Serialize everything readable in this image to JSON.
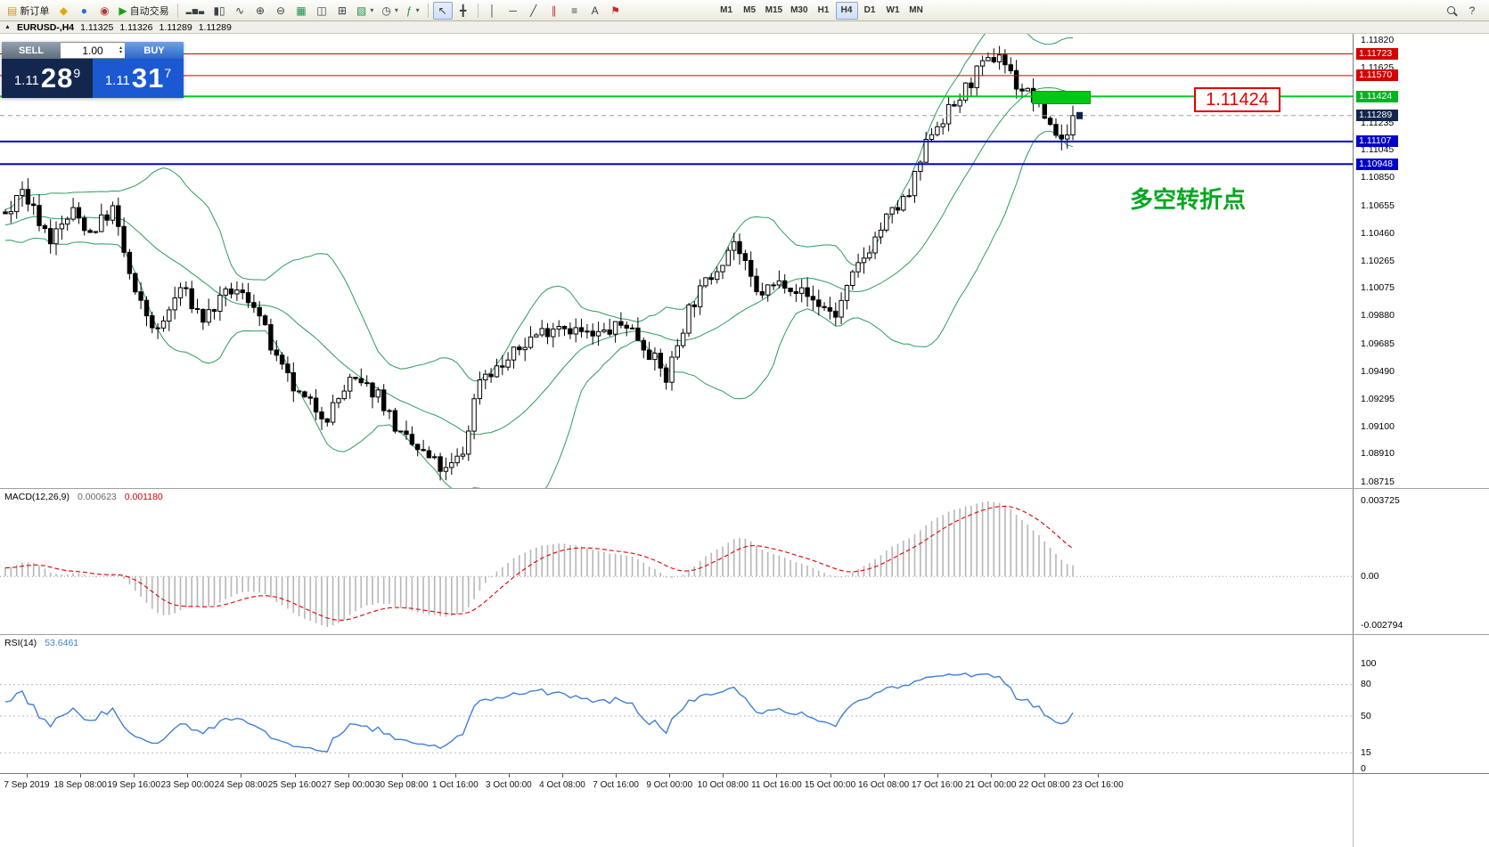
{
  "toolbar": {
    "new_order_label": "新订单",
    "autotrade_label": "自动交易",
    "text_tool_label": "A",
    "help_label": "?",
    "timeframes": [
      "M1",
      "M5",
      "M15",
      "M30",
      "H1",
      "H4",
      "D1",
      "W1",
      "MN"
    ],
    "active_timeframe": "H4"
  },
  "chart_header": {
    "symbol_period": "EURUSD-,H4",
    "open": "1.11325",
    "high": "1.11326",
    "low": "1.11289",
    "close": "1.11289"
  },
  "trade_panel": {
    "sell_label": "SELL",
    "buy_label": "BUY",
    "volume": "1.00",
    "sell_price_prefix": "1.11",
    "sell_price_big": "28",
    "sell_price_sup": "9",
    "buy_price_prefix": "1.11",
    "buy_price_big": "31",
    "buy_price_sup": "7"
  },
  "annotations": {
    "price_callout": "1.11424",
    "turning_point_note": "多空转折点"
  },
  "chart_data": {
    "type": "candlestick",
    "symbol": "EURUSD-",
    "timeframe": "H4",
    "price_axis": {
      "min": 1.08715,
      "max": 1.1182,
      "ticks": [
        "1.11820",
        "1.11625",
        "1.11235",
        "1.11045",
        "1.10850",
        "1.10655",
        "1.10460",
        "1.10265",
        "1.10075",
        "1.09880",
        "1.09685",
        "1.09490",
        "1.09295",
        "1.09100",
        "1.08910",
        "1.08715"
      ]
    },
    "level_lines": [
      {
        "name": "resistance-line-1",
        "price": 1.11723,
        "label": "1.11723",
        "color": "#d40000",
        "label_bg": "#d40000",
        "width": 1
      },
      {
        "name": "resistance-line-2",
        "price": 1.1157,
        "label": "1.11570",
        "color": "#d40000",
        "label_bg": "#d40000",
        "width": 1
      },
      {
        "name": "pivot-line",
        "price": 1.11424,
        "label": "1.11424",
        "color": "#00cc24",
        "label_bg": "#00b41e",
        "width": 2
      },
      {
        "name": "bid-price-line",
        "price": 1.11289,
        "label": "1.11289",
        "color": "#9a9a9a",
        "label_bg": "#13264e",
        "width": 1,
        "dashed": true
      },
      {
        "name": "support-line-1",
        "price": 1.11107,
        "label": "1.11107",
        "color": "#0000d4",
        "label_bg": "#0000c8",
        "width": 2
      },
      {
        "name": "support-line-2",
        "price": 1.10948,
        "label": "1.10948",
        "color": "#0000d4",
        "label_bg": "#0000c8",
        "width": 2
      }
    ],
    "time_labels": [
      "7 Sep 2019",
      "18 Sep 08:00",
      "19 Sep 16:00",
      "23 Sep 00:00",
      "24 Sep 08:00",
      "25 Sep 16:00",
      "27 Sep 00:00",
      "30 Sep 08:00",
      "1 Oct 16:00",
      "3 Oct 00:00",
      "4 Oct 08:00",
      "7 Oct 16:00",
      "9 Oct 00:00",
      "10 Oct 08:00",
      "11 Oct 16:00",
      "15 Oct 00:00",
      "16 Oct 08:00",
      "17 Oct 16:00",
      "21 Oct 00:00",
      "22 Oct 08:00",
      "23 Oct 16:00"
    ],
    "candles": {
      "count": 190,
      "warmup": 30,
      "seed": 7,
      "final_close": 1.11289,
      "noise": 0.0011,
      "wick": 0.0008,
      "anchors": [
        [
          -30,
          1.1035
        ],
        [
          -24,
          1.1052
        ],
        [
          -18,
          1.1042
        ],
        [
          -12,
          1.1055
        ],
        [
          -6,
          1.1048
        ],
        [
          0,
          1.1062
        ],
        [
          3,
          1.1076
        ],
        [
          8,
          1.1042
        ],
        [
          12,
          1.1061
        ],
        [
          15,
          1.1047
        ],
        [
          19,
          1.1063
        ],
        [
          23,
          1.1002
        ],
        [
          27,
          1.0976
        ],
        [
          31,
          1.1008
        ],
        [
          35,
          1.0986
        ],
        [
          40,
          1.1006
        ],
        [
          44,
          1.0998
        ],
        [
          48,
          1.0956
        ],
        [
          52,
          1.0931
        ],
        [
          57,
          1.0918
        ],
        [
          61,
          1.0942
        ],
        [
          66,
          1.0934
        ],
        [
          70,
          1.0903
        ],
        [
          74,
          1.0891
        ],
        [
          78,
          1.0878
        ],
        [
          81,
          1.0892
        ],
        [
          84,
          1.0946
        ],
        [
          88,
          1.0953
        ],
        [
          93,
          1.0973
        ],
        [
          98,
          1.0983
        ],
        [
          104,
          1.0973
        ],
        [
          110,
          1.0983
        ],
        [
          114,
          1.0963
        ],
        [
          117,
          1.0944
        ],
        [
          121,
          1.0993
        ],
        [
          126,
          1.1023
        ],
        [
          129,
          1.1041
        ],
        [
          133,
          1.1003
        ],
        [
          138,
          1.1013
        ],
        [
          143,
          1.0999
        ],
        [
          147,
          1.0989
        ],
        [
          151,
          1.1023
        ],
        [
          156,
          1.1056
        ],
        [
          160,
          1.1073
        ],
        [
          164,
          1.1119
        ],
        [
          168,
          1.1136
        ],
        [
          172,
          1.1159
        ],
        [
          176,
          1.1173
        ],
        [
          179,
          1.1151
        ],
        [
          182,
          1.1141
        ],
        [
          185,
          1.1123
        ],
        [
          187,
          1.1111
        ],
        [
          189,
          1.1129
        ]
      ]
    },
    "indicators": {
      "bollinger": {
        "period": 20,
        "deviation": 2,
        "color": "#2a9d5c"
      },
      "macd": {
        "label": "MACD(12,26,9)",
        "value_main": "0.000623",
        "value_signal": "0.001180",
        "axis_max": "0.003725",
        "axis_zero": "0.00",
        "axis_min": "-0.002794",
        "histogram_color": "#b6b6b6",
        "signal_color": "#e00000"
      },
      "rsi": {
        "label": "RSI(14)",
        "value": "53.6461",
        "color": "#3f7fd6",
        "axis": [
          "100",
          "80",
          "50",
          "15",
          "0"
        ],
        "levels": [
          80,
          50,
          15
        ]
      }
    }
  }
}
